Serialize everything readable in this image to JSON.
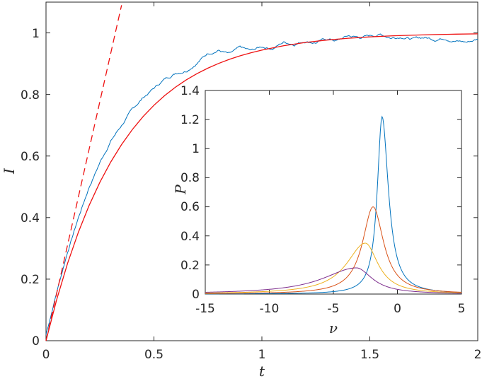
{
  "chart_data": [
    {
      "type": "line",
      "role": "main",
      "xlabel": "t",
      "ylabel": "I",
      "xlim": [
        0,
        2
      ],
      "ylim": [
        0,
        1.1
      ],
      "xticks": [
        "0",
        "0.5",
        "1",
        "1.5",
        "2"
      ],
      "yticks": [
        "0",
        "0.2",
        "0.4",
        "0.6",
        "0.8",
        "1"
      ],
      "xtick_values": [
        0,
        0.5,
        1,
        1.5,
        2
      ],
      "ytick_values": [
        0,
        0.2,
        0.4,
        0.6,
        0.8,
        1
      ],
      "grid": false,
      "series": [
        {
          "style": "noisy simulation",
          "color": "#0072BD",
          "x": [
            0,
            0.05,
            0.1,
            0.15,
            0.2,
            0.25,
            0.3,
            0.35,
            0.4,
            0.45,
            0.5,
            0.55,
            0.6,
            0.65,
            0.7,
            0.75,
            0.8,
            0.85,
            0.9,
            0.95,
            1.0,
            1.05,
            1.1,
            1.15,
            1.2,
            1.25,
            1.3,
            1.35,
            1.4,
            1.45,
            1.5,
            1.55,
            1.6,
            1.65,
            1.7,
            1.75,
            1.8,
            1.85,
            1.9,
            1.95,
            2.0
          ],
          "y": [
            0.02,
            0.16,
            0.29,
            0.4,
            0.5,
            0.58,
            0.65,
            0.7,
            0.75,
            0.79,
            0.82,
            0.85,
            0.87,
            0.88,
            0.905,
            0.935,
            0.945,
            0.93,
            0.95,
            0.94,
            0.955,
            0.95,
            0.97,
            0.965,
            0.975,
            0.97,
            0.98,
            0.975,
            0.99,
            0.985,
            0.99,
            0.995,
            0.985,
            0.99,
            0.98,
            0.985,
            0.98,
            0.985,
            0.975,
            0.97,
            0.98
          ]
        },
        {
          "style": "fit",
          "color": "#EE1111",
          "x": [
            0,
            0.05,
            0.1,
            0.15,
            0.2,
            0.25,
            0.3,
            0.35,
            0.4,
            0.45,
            0.5,
            0.55,
            0.6,
            0.65,
            0.7,
            0.75,
            0.8,
            0.85,
            0.9,
            0.95,
            1.0,
            1.1,
            1.2,
            1.3,
            1.4,
            1.5,
            1.6,
            1.7,
            1.8,
            1.9,
            2.0
          ],
          "y": [
            0,
            0.1349,
            0.2516,
            0.3526,
            0.4399,
            0.5154,
            0.5807,
            0.6372,
            0.6861,
            0.7283,
            0.7649,
            0.7965,
            0.8238,
            0.8475,
            0.8679,
            0.8856,
            0.9009,
            0.9142,
            0.9257,
            0.9356,
            0.9442,
            0.9582,
            0.9688,
            0.9767,
            0.9826,
            0.987,
            0.9903,
            0.9927,
            0.9946,
            0.9959,
            0.997
          ]
        },
        {
          "style": "initial slope (dashed)",
          "color": "#EE1111",
          "dashed": true,
          "x": [
            0,
            0.35
          ],
          "y": [
            0,
            1.09
          ]
        }
      ]
    },
    {
      "type": "line",
      "role": "inset",
      "xlabel": "ν",
      "ylabel": "P",
      "xlim": [
        -15,
        5
      ],
      "ylim": [
        0,
        1.4
      ],
      "xticks": [
        "-15",
        "-10",
        "-5",
        "0",
        "5"
      ],
      "yticks": [
        "0",
        "0.2",
        "0.4",
        "0.6",
        "0.8",
        "1",
        "1.2",
        "1.4"
      ],
      "xtick_values": [
        -15,
        -10,
        -5,
        0,
        5
      ],
      "ytick_values": [
        0,
        0.2,
        0.4,
        0.6,
        0.8,
        1,
        1.2,
        1.4
      ],
      "grid": false,
      "series": [
        {
          "color": "#0072BD",
          "peak_x": -1.2,
          "peak_y": 1.22,
          "left_width": 0.45,
          "right_width": 0.6
        },
        {
          "color": "#D95319",
          "peak_x": -1.9,
          "peak_y": 0.6,
          "left_width": 1.0,
          "right_width": 1.0
        },
        {
          "color": "#EDB120",
          "peak_x": -2.5,
          "peak_y": 0.35,
          "left_width": 1.8,
          "right_width": 1.2
        },
        {
          "color": "#7E2F8E",
          "peak_x": -3.2,
          "peak_y": 0.18,
          "left_width": 3.2,
          "right_width": 1.5
        }
      ]
    }
  ]
}
